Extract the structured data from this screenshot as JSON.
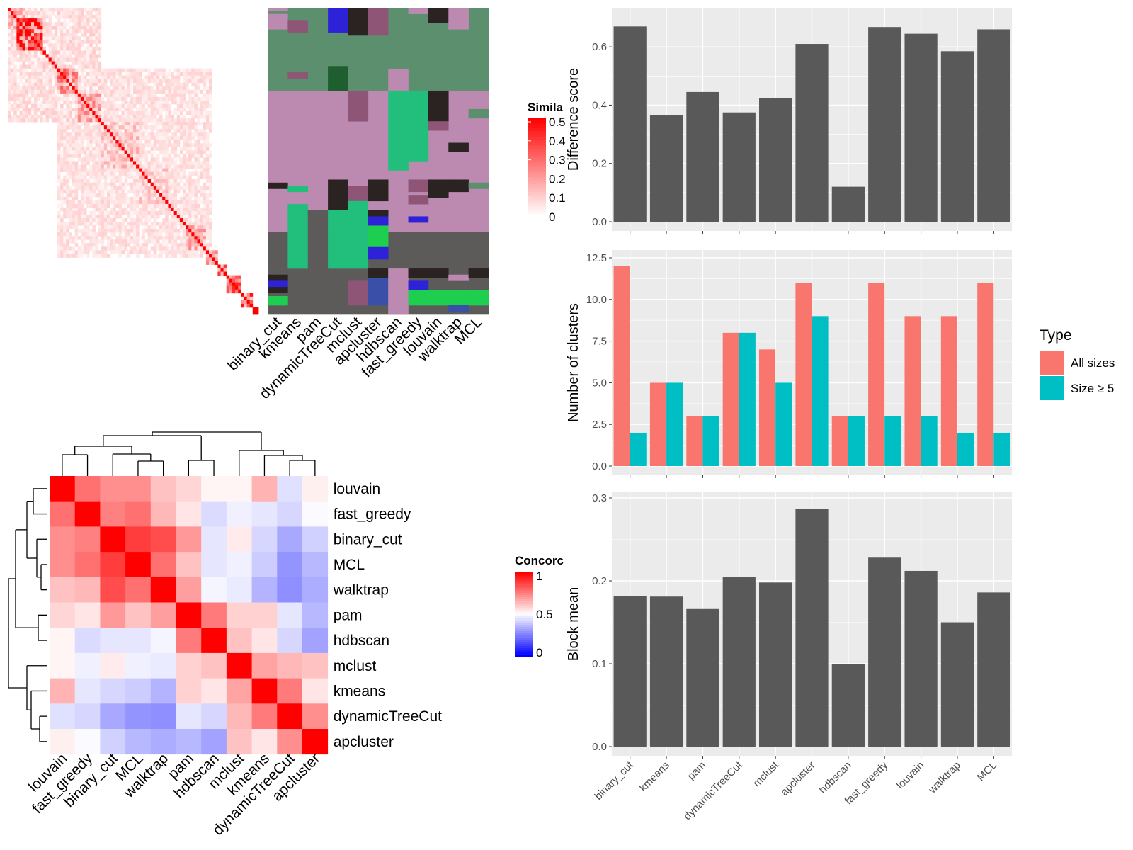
{
  "simheat": {
    "legend_title": "Simila",
    "legend_ticks": [
      "0.5",
      "0.4",
      "0.3",
      "0.2",
      "0.1",
      "0"
    ],
    "colors": {
      "high": "#FF0000",
      "low": "#FFFFFF"
    },
    "blocks": [
      {
        "start": 0,
        "end": 6,
        "level": 0.2
      },
      {
        "start": 3,
        "end": 12,
        "level": 0.45
      },
      {
        "start": 12,
        "end": 17,
        "level": 0.1
      },
      {
        "start": 17,
        "end": 24,
        "level": 0.28
      },
      {
        "start": 24,
        "end": 32,
        "level": 0.22
      },
      {
        "start": 32,
        "end": 45,
        "level": 0.14
      },
      {
        "start": 45,
        "end": 55,
        "level": 0.12
      },
      {
        "start": 55,
        "end": 61,
        "level": 0.1
      },
      {
        "start": 61,
        "end": 68,
        "level": 0.18
      },
      {
        "start": 68,
        "end": 72,
        "level": 0.22
      },
      {
        "start": 72,
        "end": 75,
        "level": 0.3
      },
      {
        "start": 75,
        "end": 80,
        "level": 0.35
      },
      {
        "start": 80,
        "end": 84,
        "level": 0.4
      },
      {
        "start": 84,
        "end": 86,
        "level": 0.5
      }
    ]
  },
  "membership": {
    "methods": [
      "binary_cut",
      "kmeans",
      "pam",
      "dynamicTreeCut",
      "mclust",
      "apcluster",
      "hdbscan",
      "fast_greedy",
      "louvain",
      "walktrap",
      "MCL"
    ],
    "colors": {
      "green": "#5B8F6E",
      "pink": "#BC89B0",
      "mauve": "#8E5576",
      "black": "#2B2321",
      "gray": "#5D5A5A",
      "teal": "#22BE7C",
      "bright": "#1ECF4F",
      "blue": "#2E22D8",
      "navy": "#3A4FA8",
      "dgreen": "#1F5E2E"
    },
    "bands": [
      {
        "from": 0,
        "to": 10,
        "fill": "green"
      },
      {
        "from": 10,
        "to": 27,
        "fill": "green"
      },
      {
        "from": 27,
        "to": 53,
        "fill": "pink"
      },
      {
        "from": 53,
        "to": 73,
        "fill": "pink"
      },
      {
        "from": 73,
        "to": 85,
        "fill": "gray"
      },
      {
        "from": 85,
        "to": 100,
        "fill": "gray"
      }
    ],
    "patches": [
      {
        "col": 0,
        "from": 0,
        "to": 1,
        "fill": "pink"
      },
      {
        "col": 0,
        "from": 2,
        "to": 7,
        "fill": "pink"
      },
      {
        "col": 1,
        "from": 4,
        "to": 8,
        "fill": "mauve"
      },
      {
        "col": 1,
        "from": 21,
        "to": 23,
        "fill": "mauve"
      },
      {
        "col": 3,
        "from": 0,
        "to": 8,
        "fill": "blue"
      },
      {
        "col": 3,
        "from": 19,
        "to": 27,
        "fill": "dgreen"
      },
      {
        "col": 4,
        "from": 0,
        "to": 9,
        "fill": "black"
      },
      {
        "col": 5,
        "from": 0,
        "to": 9,
        "fill": "mauve"
      },
      {
        "col": 6,
        "from": 20,
        "to": 27,
        "fill": "pink"
      },
      {
        "col": 7,
        "from": 0,
        "to": 2,
        "fill": "pink"
      },
      {
        "col": 8,
        "from": 0,
        "to": 2,
        "fill": "pink"
      },
      {
        "col": 8,
        "from": 0,
        "to": 5,
        "fill": "black"
      },
      {
        "col": 9,
        "from": 0,
        "to": 7,
        "fill": "pink"
      },
      {
        "col": 4,
        "from": 27,
        "to": 37,
        "fill": "mauve"
      },
      {
        "col": 6,
        "from": 27,
        "to": 53,
        "fill": "teal"
      },
      {
        "col": 7,
        "from": 27,
        "to": 50,
        "fill": "teal"
      },
      {
        "col": 8,
        "from": 27,
        "to": 37,
        "fill": "black"
      },
      {
        "col": 8,
        "from": 37,
        "to": 40,
        "fill": "mauve"
      },
      {
        "col": 9,
        "from": 44,
        "to": 47,
        "fill": "black"
      },
      {
        "col": 10,
        "from": 33,
        "to": 36,
        "fill": "green"
      },
      {
        "col": 0,
        "from": 57,
        "to": 59,
        "fill": "black"
      },
      {
        "col": 1,
        "from": 58,
        "to": 60,
        "fill": "teal"
      },
      {
        "col": 1,
        "from": 64,
        "to": 85,
        "fill": "teal"
      },
      {
        "col": 2,
        "from": 66,
        "to": 69,
        "fill": "gray"
      },
      {
        "col": 2,
        "from": 69,
        "to": 85,
        "fill": "gray"
      },
      {
        "col": 3,
        "from": 56,
        "to": 66,
        "fill": "black"
      },
      {
        "col": 3,
        "from": 66,
        "to": 85,
        "fill": "teal"
      },
      {
        "col": 4,
        "from": 58,
        "to": 63,
        "fill": "mauve"
      },
      {
        "col": 4,
        "from": 63,
        "to": 85,
        "fill": "teal"
      },
      {
        "col": 5,
        "from": 56,
        "to": 63,
        "fill": "black"
      },
      {
        "col": 5,
        "from": 66,
        "to": 68,
        "fill": "black"
      },
      {
        "col": 5,
        "from": 68,
        "to": 71,
        "fill": "blue"
      },
      {
        "col": 5,
        "from": 71,
        "to": 78,
        "fill": "bright"
      },
      {
        "col": 5,
        "from": 78,
        "to": 82,
        "fill": "blue"
      },
      {
        "col": 7,
        "from": 56,
        "to": 60,
        "fill": "mauve"
      },
      {
        "col": 7,
        "from": 61,
        "to": 64,
        "fill": "mauve"
      },
      {
        "col": 7,
        "from": 68,
        "to": 70,
        "fill": "blue"
      },
      {
        "col": 8,
        "from": 56,
        "to": 62,
        "fill": "black"
      },
      {
        "col": 9,
        "from": 56,
        "to": 60,
        "fill": "black"
      },
      {
        "col": 10,
        "from": 57,
        "to": 59,
        "fill": "green"
      },
      {
        "col": 0,
        "from": 87,
        "to": 89,
        "fill": "black"
      },
      {
        "col": 0,
        "from": 89,
        "to": 91,
        "fill": "blue"
      },
      {
        "col": 0,
        "from": 91,
        "to": 93,
        "fill": "black"
      },
      {
        "col": 0,
        "from": 94,
        "to": 97,
        "fill": "bright"
      },
      {
        "col": 4,
        "from": 89,
        "to": 97,
        "fill": "mauve"
      },
      {
        "col": 5,
        "from": 85,
        "to": 88,
        "fill": "black"
      },
      {
        "col": 5,
        "from": 88,
        "to": 97,
        "fill": "navy"
      },
      {
        "col": 6,
        "from": 85,
        "to": 100,
        "fill": "pink"
      },
      {
        "col": 7,
        "from": 85,
        "to": 88,
        "fill": "black"
      },
      {
        "col": 7,
        "from": 89,
        "to": 92,
        "fill": "blue"
      },
      {
        "col": 7,
        "from": 92,
        "to": 97,
        "fill": "bright"
      },
      {
        "col": 8,
        "from": 85,
        "to": 88,
        "fill": "black"
      },
      {
        "col": 8,
        "from": 92,
        "to": 97,
        "fill": "bright"
      },
      {
        "col": 9,
        "from": 87,
        "to": 89,
        "fill": "pink"
      },
      {
        "col": 9,
        "from": 92,
        "to": 97,
        "fill": "bright"
      },
      {
        "col": 9,
        "from": 97,
        "to": 99,
        "fill": "navy"
      },
      {
        "col": 10,
        "from": 85,
        "to": 88,
        "fill": "black"
      },
      {
        "col": 10,
        "from": 92,
        "to": 97,
        "fill": "bright"
      }
    ]
  },
  "concordance": {
    "legend_title": "Concorc",
    "legend_ticks": [
      "1",
      "0.5",
      "0"
    ],
    "colors": {
      "high": "#FF0000",
      "mid": "#FFFFFF",
      "low": "#0000FF"
    },
    "labels": [
      "louvain",
      "fast_greedy",
      "binary_cut",
      "MCL",
      "walktrap",
      "pam",
      "hdbscan",
      "mclust",
      "kmeans",
      "dynamicTreeCut",
      "apcluster"
    ],
    "matrix": [
      [
        1.0,
        0.78,
        0.72,
        0.72,
        0.62,
        0.58,
        0.52,
        0.52,
        0.65,
        0.44,
        0.53
      ],
      [
        0.78,
        1.0,
        0.75,
        0.78,
        0.64,
        0.55,
        0.43,
        0.47,
        0.45,
        0.42,
        0.49
      ],
      [
        0.72,
        0.75,
        1.0,
        0.88,
        0.85,
        0.7,
        0.45,
        0.54,
        0.42,
        0.33,
        0.41
      ],
      [
        0.72,
        0.78,
        0.88,
        1.0,
        0.78,
        0.62,
        0.45,
        0.47,
        0.4,
        0.29,
        0.36
      ],
      [
        0.62,
        0.64,
        0.85,
        0.78,
        1.0,
        0.69,
        0.48,
        0.46,
        0.35,
        0.28,
        0.34
      ],
      [
        0.58,
        0.55,
        0.7,
        0.62,
        0.69,
        1.0,
        0.76,
        0.59,
        0.59,
        0.45,
        0.36
      ],
      [
        0.52,
        0.43,
        0.45,
        0.45,
        0.48,
        0.76,
        1.0,
        0.62,
        0.55,
        0.42,
        0.32
      ],
      [
        0.52,
        0.47,
        0.54,
        0.47,
        0.46,
        0.59,
        0.62,
        1.0,
        0.68,
        0.64,
        0.62
      ],
      [
        0.65,
        0.45,
        0.42,
        0.4,
        0.35,
        0.59,
        0.55,
        0.68,
        1.0,
        0.76,
        0.55
      ],
      [
        0.44,
        0.42,
        0.33,
        0.29,
        0.28,
        0.45,
        0.42,
        0.64,
        0.76,
        1.0,
        0.72
      ],
      [
        0.53,
        0.49,
        0.41,
        0.36,
        0.34,
        0.36,
        0.32,
        0.62,
        0.55,
        0.72,
        1.0
      ]
    ]
  },
  "bars": {
    "panel_bg": "#EBEBEB",
    "bar_color": "#595959",
    "categories": [
      "binary_cut",
      "kmeans",
      "pam",
      "dynamicTreeCut",
      "mclust",
      "apcluster",
      "hdbscan",
      "fast_greedy",
      "louvain",
      "walktrap",
      "MCL"
    ]
  },
  "chart_data": [
    {
      "type": "bar",
      "ylabel": "Difference score",
      "ylim": [
        0,
        0.7
      ],
      "yticks": [
        "0.0",
        "0.2",
        "0.4",
        "0.6"
      ],
      "categories": [
        "binary_cut",
        "kmeans",
        "pam",
        "dynamicTreeCut",
        "mclust",
        "apcluster",
        "hdbscan",
        "fast_greedy",
        "louvain",
        "walktrap",
        "MCL"
      ],
      "values": [
        0.67,
        0.365,
        0.445,
        0.375,
        0.425,
        0.61,
        0.12,
        0.668,
        0.645,
        0.585,
        0.66
      ]
    },
    {
      "type": "bar",
      "ylabel": "Number of clusters",
      "ylim": [
        0,
        12.5
      ],
      "yticks": [
        "0.0",
        "2.5",
        "5.0",
        "7.5",
        "10.0",
        "12.5"
      ],
      "legend_title": "Type",
      "legend_position": "right",
      "categories": [
        "binary_cut",
        "kmeans",
        "pam",
        "dynamicTreeCut",
        "mclust",
        "apcluster",
        "hdbscan",
        "fast_greedy",
        "louvain",
        "walktrap",
        "MCL"
      ],
      "series": [
        {
          "name": "All sizes",
          "color": "#F8766D",
          "values": [
            12,
            5,
            3,
            8,
            7,
            11,
            3,
            11,
            9,
            9,
            11
          ]
        },
        {
          "name": "Size ≥ 5",
          "color": "#00BFC4",
          "values": [
            2,
            5,
            3,
            8,
            5,
            9,
            3,
            3,
            3,
            2,
            2
          ]
        }
      ]
    },
    {
      "type": "bar",
      "ylabel": "Block mean",
      "ylim": [
        0,
        0.3
      ],
      "yticks": [
        "0.0",
        "0.1",
        "0.2",
        "0.3"
      ],
      "categories": [
        "binary_cut",
        "kmeans",
        "pam",
        "dynamicTreeCut",
        "mclust",
        "apcluster",
        "hdbscan",
        "fast_greedy",
        "louvain",
        "walktrap",
        "MCL"
      ],
      "values": [
        0.182,
        0.181,
        0.166,
        0.205,
        0.198,
        0.287,
        0.1,
        0.228,
        0.212,
        0.15,
        0.186
      ]
    }
  ]
}
